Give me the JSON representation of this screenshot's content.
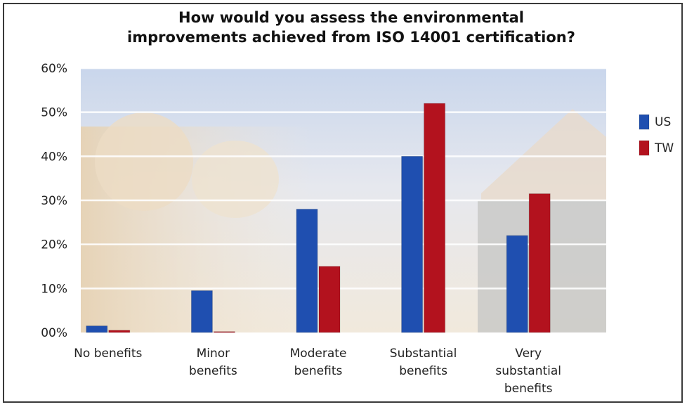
{
  "chart_data": {
    "type": "bar",
    "title_lines": [
      "How would you assess the environmental",
      "improvements achieved from ISO 14001 certification?"
    ],
    "categories": [
      [
        "No benefits"
      ],
      [
        "Minor",
        "benefits"
      ],
      [
        "Moderate",
        "benefits"
      ],
      [
        "Substantial",
        "benefits"
      ],
      [
        "Very",
        "substantial",
        "benefits"
      ]
    ],
    "series": [
      {
        "name": "US",
        "values": [
          1.5,
          9.5,
          28,
          40,
          22
        ],
        "color": "#1f4fb0"
      },
      {
        "name": "TW",
        "values": [
          0.5,
          0.2,
          15,
          52,
          31.5
        ],
        "color": "#b3121e"
      }
    ],
    "y_ticks": [
      "00%",
      "10%",
      "20%",
      "30%",
      "40%",
      "50%",
      "60%"
    ],
    "ylim": [
      0,
      60
    ],
    "grid": true,
    "legend_position": "right"
  }
}
